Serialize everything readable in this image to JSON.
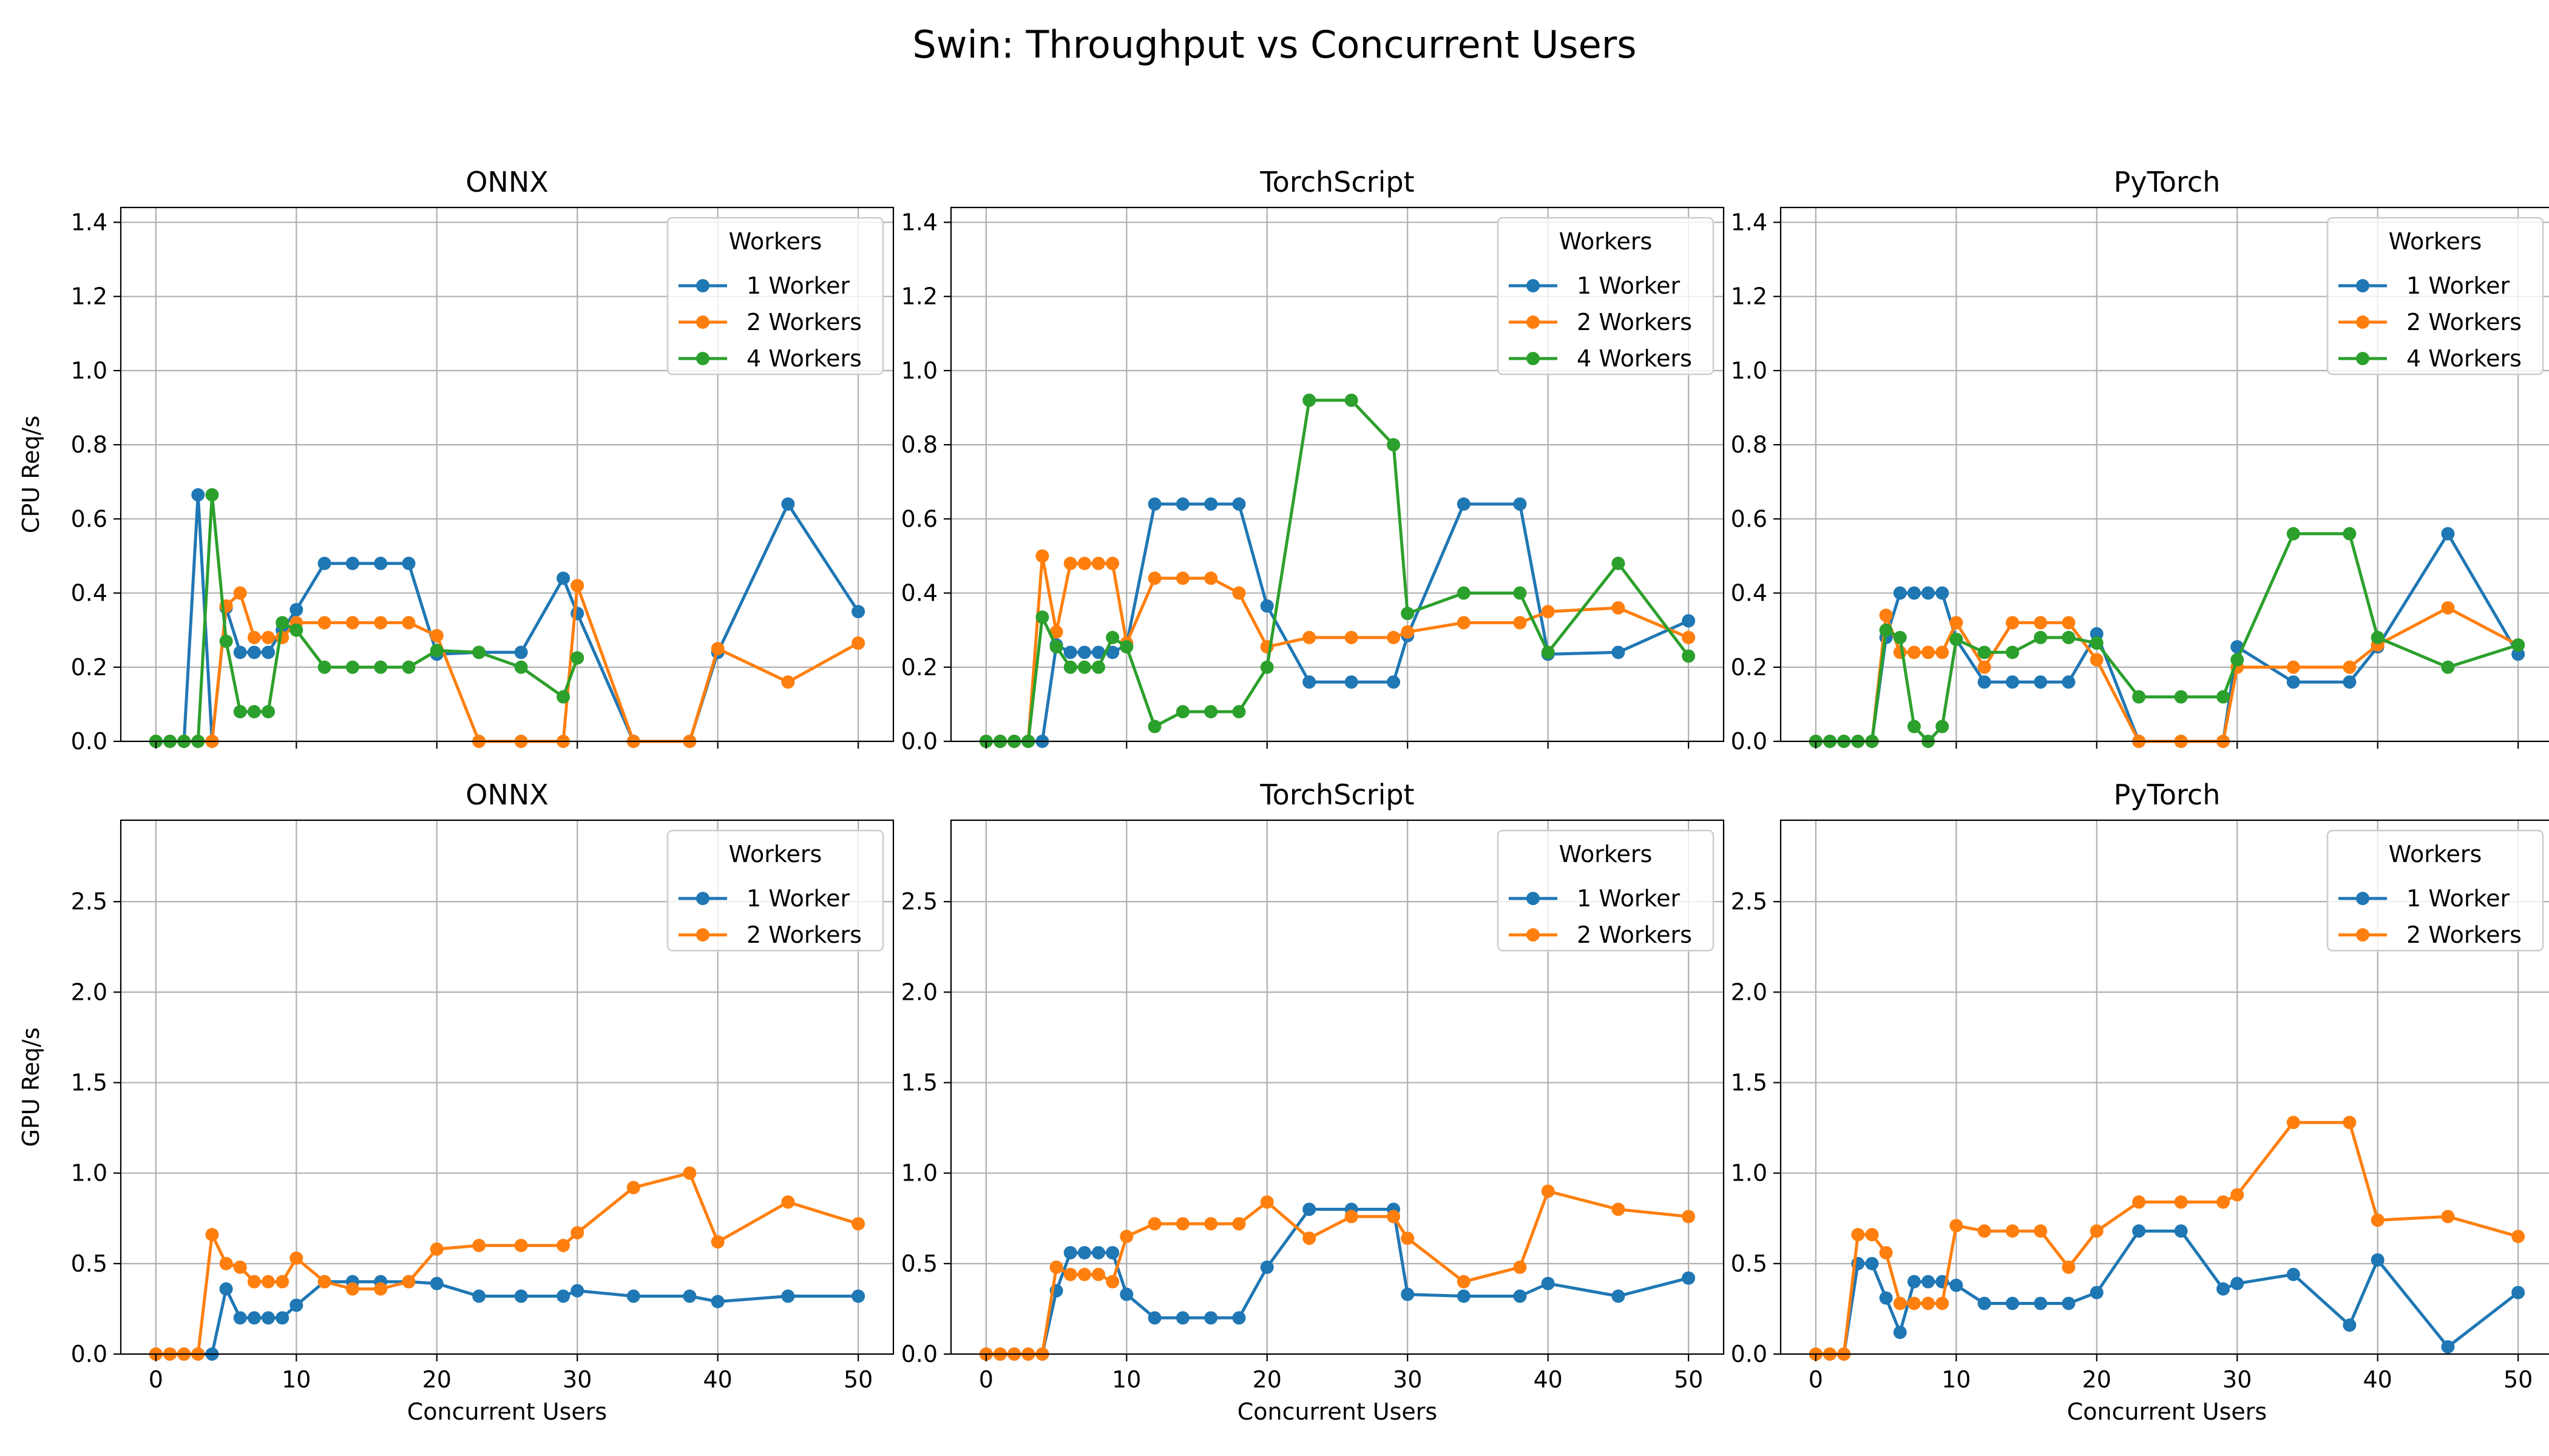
{
  "suptitle": "Swin: Throughput vs Concurrent Users",
  "colors": {
    "1 Worker": "#1f77b4",
    "2 Workers": "#ff7f0e",
    "4 Workers": "#2ca02c"
  },
  "chart_data": [
    {
      "type": "line",
      "title": "ONNX",
      "xlabel": "",
      "ylabel": "CPU Req/s",
      "xlim": [
        -2.5,
        52.5
      ],
      "ylim": [
        0,
        1.44
      ],
      "xticks": [
        0,
        10,
        20,
        30,
        40,
        50
      ],
      "xtick_labels": [
        "",
        "",
        "",
        "",
        "",
        ""
      ],
      "yticks": [
        0,
        0.2,
        0.4,
        0.6,
        0.8,
        1.0,
        1.2,
        1.4
      ],
      "ytick_labels": [
        "0.0",
        "0.2",
        "0.4",
        "0.6",
        "0.8",
        "1.0",
        "1.2",
        "1.4"
      ],
      "legend_title": "Workers",
      "legend_loc": "upper right",
      "grid": true,
      "series": [
        {
          "name": "1 Worker",
          "x": [
            0,
            1,
            2,
            3,
            4,
            5,
            6,
            7,
            8,
            9,
            10,
            12,
            14,
            16,
            18,
            20,
            23,
            26,
            29,
            30,
            34,
            38,
            40,
            45,
            50
          ],
          "y": [
            0,
            0,
            0,
            0.665,
            0,
            0.36,
            0.24,
            0.24,
            0.24,
            0.3,
            0.355,
            0.48,
            0.48,
            0.48,
            0.48,
            0.235,
            0.24,
            0.24,
            0.44,
            0.345,
            0,
            0,
            0.24,
            0.64,
            0.35
          ]
        },
        {
          "name": "2 Workers",
          "x": [
            0,
            1,
            2,
            3,
            4,
            5,
            6,
            7,
            8,
            9,
            10,
            12,
            14,
            16,
            18,
            20,
            23,
            26,
            29,
            30,
            34,
            38,
            40,
            45,
            50
          ],
          "y": [
            0,
            0,
            0,
            0,
            0,
            0.365,
            0.4,
            0.28,
            0.28,
            0.28,
            0.32,
            0.32,
            0.32,
            0.32,
            0.32,
            0.285,
            0,
            0,
            0,
            0.42,
            0,
            0,
            0.25,
            0.16,
            0.265
          ]
        },
        {
          "name": "4 Workers",
          "x": [
            0,
            1,
            2,
            3,
            4,
            5,
            6,
            7,
            8,
            9,
            10,
            12,
            14,
            16,
            18,
            20,
            23,
            26,
            29,
            30
          ],
          "y": [
            0,
            0,
            0,
            0,
            0.665,
            0.27,
            0.08,
            0.08,
            0.08,
            0.32,
            0.3,
            0.2,
            0.2,
            0.2,
            0.2,
            0.245,
            0.24,
            0.2,
            0.12,
            0.225
          ]
        }
      ]
    },
    {
      "type": "line",
      "title": "TorchScript",
      "xlabel": "",
      "ylabel": "",
      "xlim": [
        -2.5,
        52.5
      ],
      "ylim": [
        0,
        1.44
      ],
      "xticks": [
        0,
        10,
        20,
        30,
        40,
        50
      ],
      "xtick_labels": [
        "",
        "",
        "",
        "",
        "",
        ""
      ],
      "yticks": [
        0,
        0.2,
        0.4,
        0.6,
        0.8,
        1.0,
        1.2,
        1.4
      ],
      "ytick_labels": [
        "0.0",
        "0.2",
        "0.4",
        "0.6",
        "0.8",
        "1.0",
        "1.2",
        "1.4"
      ],
      "legend_title": "Workers",
      "legend_loc": "upper right",
      "grid": true,
      "series": [
        {
          "name": "1 Worker",
          "x": [
            0,
            1,
            2,
            3,
            4,
            5,
            6,
            7,
            8,
            9,
            10,
            12,
            14,
            16,
            18,
            20,
            23,
            26,
            29,
            30,
            34,
            38,
            40,
            45,
            50
          ],
          "y": [
            0,
            0,
            0,
            0,
            0,
            0.26,
            0.24,
            0.24,
            0.24,
            0.24,
            0.26,
            0.64,
            0.64,
            0.64,
            0.64,
            0.365,
            0.16,
            0.16,
            0.16,
            0.285,
            0.64,
            0.64,
            0.235,
            0.24,
            0.325
          ]
        },
        {
          "name": "2 Workers",
          "x": [
            0,
            1,
            2,
            3,
            4,
            5,
            6,
            7,
            8,
            9,
            10,
            12,
            14,
            16,
            18,
            20,
            23,
            26,
            29,
            30,
            34,
            38,
            40,
            45,
            50
          ],
          "y": [
            0,
            0,
            0,
            0,
            0.5,
            0.295,
            0.48,
            0.48,
            0.48,
            0.48,
            0.265,
            0.44,
            0.44,
            0.44,
            0.4,
            0.255,
            0.28,
            0.28,
            0.28,
            0.295,
            0.32,
            0.32,
            0.35,
            0.36,
            0.28
          ]
        },
        {
          "name": "4 Workers",
          "x": [
            0,
            1,
            2,
            3,
            4,
            5,
            6,
            7,
            8,
            9,
            10,
            12,
            14,
            16,
            18,
            20,
            23,
            26,
            29,
            30,
            34,
            38,
            40,
            45,
            50
          ],
          "y": [
            0,
            0,
            0,
            0,
            0.335,
            0.255,
            0.2,
            0.2,
            0.2,
            0.28,
            0.255,
            0.04,
            0.08,
            0.08,
            0.08,
            0.2,
            0.92,
            0.92,
            0.8,
            0.345,
            0.4,
            0.4,
            0.24,
            0.48,
            0.23
          ]
        }
      ]
    },
    {
      "type": "line",
      "title": "PyTorch",
      "xlabel": "",
      "ylabel": "",
      "xlim": [
        -2.5,
        52.5
      ],
      "ylim": [
        0,
        1.44
      ],
      "xticks": [
        0,
        10,
        20,
        30,
        40,
        50
      ],
      "xtick_labels": [
        "",
        "",
        "",
        "",
        "",
        ""
      ],
      "yticks": [
        0,
        0.2,
        0.4,
        0.6,
        0.8,
        1.0,
        1.2,
        1.4
      ],
      "ytick_labels": [
        "0.0",
        "0.2",
        "0.4",
        "0.6",
        "0.8",
        "1.0",
        "1.2",
        "1.4"
      ],
      "legend_title": "Workers",
      "legend_loc": "upper right",
      "grid": true,
      "series": [
        {
          "name": "1 Worker",
          "x": [
            0,
            1,
            2,
            3,
            4,
            5,
            6,
            7,
            8,
            9,
            10,
            12,
            14,
            16,
            18,
            20,
            23,
            26,
            29,
            30,
            34,
            38,
            40,
            45,
            50
          ],
          "y": [
            0,
            0,
            0,
            0,
            0,
            0.28,
            0.4,
            0.4,
            0.4,
            0.4,
            0.275,
            0.16,
            0.16,
            0.16,
            0.16,
            0.29,
            0,
            0,
            0,
            0.255,
            0.16,
            0.16,
            0.255,
            0.56,
            0.235
          ]
        },
        {
          "name": "2 Workers",
          "x": [
            0,
            1,
            2,
            3,
            4,
            5,
            6,
            7,
            8,
            9,
            10,
            12,
            14,
            16,
            18,
            20,
            23,
            26,
            29,
            30,
            34,
            38,
            40,
            45,
            50
          ],
          "y": [
            0,
            0,
            0,
            0,
            0,
            0.34,
            0.24,
            0.24,
            0.24,
            0.24,
            0.32,
            0.2,
            0.32,
            0.32,
            0.32,
            0.22,
            0,
            0,
            0,
            0.2,
            0.2,
            0.2,
            0.26,
            0.36,
            0.26
          ]
        },
        {
          "name": "4 Workers",
          "x": [
            0,
            1,
            2,
            3,
            4,
            5,
            6,
            7,
            8,
            9,
            10,
            12,
            14,
            16,
            18,
            20,
            23,
            26,
            29,
            30,
            34,
            38,
            40,
            45,
            50
          ],
          "y": [
            0,
            0,
            0,
            0,
            0,
            0.3,
            0.28,
            0.04,
            0,
            0.04,
            0.275,
            0.24,
            0.24,
            0.28,
            0.28,
            0.265,
            0.12,
            0.12,
            0.12,
            0.22,
            0.56,
            0.56,
            0.28,
            0.2,
            0.26
          ]
        }
      ]
    },
    {
      "type": "line",
      "title": "ONNX",
      "xlabel": "Concurrent Users",
      "ylabel": "GPU Req/s",
      "xlim": [
        -2.5,
        52.5
      ],
      "ylim": [
        0,
        2.95
      ],
      "xticks": [
        0,
        10,
        20,
        30,
        40,
        50
      ],
      "xtick_labels": [
        "0",
        "10",
        "20",
        "30",
        "40",
        "50"
      ],
      "yticks": [
        0,
        0.5,
        1.0,
        1.5,
        2.0,
        2.5
      ],
      "ytick_labels": [
        "0.0",
        "0.5",
        "1.0",
        "1.5",
        "2.0",
        "2.5"
      ],
      "legend_title": "Workers",
      "legend_loc": "upper right",
      "grid": true,
      "series": [
        {
          "name": "1 Worker",
          "x": [
            0,
            1,
            2,
            3,
            4,
            5,
            6,
            7,
            8,
            9,
            10,
            12,
            14,
            16,
            18,
            20,
            23,
            26,
            29,
            30,
            34,
            38,
            40,
            45,
            50
          ],
          "y": [
            0,
            0,
            0,
            0,
            0,
            0.36,
            0.2,
            0.2,
            0.2,
            0.2,
            0.27,
            0.4,
            0.4,
            0.4,
            0.4,
            0.39,
            0.32,
            0.32,
            0.32,
            0.35,
            0.32,
            0.32,
            0.29,
            0.32,
            0.32
          ]
        },
        {
          "name": "2 Workers",
          "x": [
            0,
            1,
            2,
            3,
            4,
            5,
            6,
            7,
            8,
            9,
            10,
            12,
            14,
            16,
            18,
            20,
            23,
            26,
            29,
            30,
            34,
            38,
            40,
            45,
            50
          ],
          "y": [
            0,
            0,
            0,
            0,
            0.66,
            0.5,
            0.48,
            0.4,
            0.4,
            0.4,
            0.53,
            0.4,
            0.36,
            0.36,
            0.4,
            0.58,
            0.6,
            0.6,
            0.6,
            0.67,
            0.92,
            1.0,
            0.62,
            0.84,
            0.72
          ]
        }
      ]
    },
    {
      "type": "line",
      "title": "TorchScript",
      "xlabel": "Concurrent Users",
      "ylabel": "",
      "xlim": [
        -2.5,
        52.5
      ],
      "ylim": [
        0,
        2.95
      ],
      "xticks": [
        0,
        10,
        20,
        30,
        40,
        50
      ],
      "xtick_labels": [
        "0",
        "10",
        "20",
        "30",
        "40",
        "50"
      ],
      "yticks": [
        0,
        0.5,
        1.0,
        1.5,
        2.0,
        2.5
      ],
      "ytick_labels": [
        "0.0",
        "0.5",
        "1.0",
        "1.5",
        "2.0",
        "2.5"
      ],
      "legend_title": "Workers",
      "legend_loc": "upper right",
      "grid": true,
      "series": [
        {
          "name": "1 Worker",
          "x": [
            0,
            1,
            2,
            3,
            4,
            5,
            6,
            7,
            8,
            9,
            10,
            12,
            14,
            16,
            18,
            20,
            23,
            26,
            29,
            30,
            34,
            38,
            40,
            45,
            50
          ],
          "y": [
            0,
            0,
            0,
            0,
            0,
            0.35,
            0.56,
            0.56,
            0.56,
            0.56,
            0.33,
            0.2,
            0.2,
            0.2,
            0.2,
            0.48,
            0.8,
            0.8,
            0.8,
            0.33,
            0.32,
            0.32,
            0.39,
            0.32,
            0.42
          ]
        },
        {
          "name": "2 Workers",
          "x": [
            0,
            1,
            2,
            3,
            4,
            5,
            6,
            7,
            8,
            9,
            10,
            12,
            14,
            16,
            18,
            20,
            23,
            26,
            29,
            30,
            34,
            38,
            40,
            45,
            50
          ],
          "y": [
            0,
            0,
            0,
            0,
            0,
            0.48,
            0.44,
            0.44,
            0.44,
            0.4,
            0.65,
            0.72,
            0.72,
            0.72,
            0.72,
            0.84,
            0.64,
            0.76,
            0.76,
            0.64,
            0.4,
            0.48,
            0.9,
            0.8,
            0.76
          ]
        }
      ]
    },
    {
      "type": "line",
      "title": "PyTorch",
      "xlabel": "Concurrent Users",
      "ylabel": "",
      "xlim": [
        -2.5,
        52.5
      ],
      "ylim": [
        0,
        2.95
      ],
      "xticks": [
        0,
        10,
        20,
        30,
        40,
        50
      ],
      "xtick_labels": [
        "0",
        "10",
        "20",
        "30",
        "40",
        "50"
      ],
      "yticks": [
        0,
        0.5,
        1.0,
        1.5,
        2.0,
        2.5
      ],
      "ytick_labels": [
        "0.0",
        "0.5",
        "1.0",
        "1.5",
        "2.0",
        "2.5"
      ],
      "legend_title": "Workers",
      "legend_loc": "upper right",
      "grid": true,
      "series": [
        {
          "name": "1 Worker",
          "x": [
            0,
            1,
            2,
            3,
            4,
            5,
            6,
            7,
            8,
            9,
            10,
            12,
            14,
            16,
            18,
            20,
            23,
            26,
            29,
            30,
            34,
            38,
            40,
            45,
            50
          ],
          "y": [
            0,
            0,
            0,
            0.5,
            0.5,
            0.31,
            0.12,
            0.4,
            0.4,
            0.4,
            0.38,
            0.28,
            0.28,
            0.28,
            0.28,
            0.34,
            0.68,
            0.68,
            0.36,
            0.39,
            0.44,
            0.16,
            0.52,
            0.04,
            0.34
          ]
        },
        {
          "name": "2 Workers",
          "x": [
            0,
            1,
            2,
            3,
            4,
            5,
            6,
            7,
            8,
            9,
            10,
            12,
            14,
            16,
            18,
            20,
            23,
            26,
            29,
            30,
            34,
            38,
            40,
            45,
            50
          ],
          "y": [
            0,
            0,
            0,
            0.66,
            0.66,
            0.56,
            0.28,
            0.28,
            0.28,
            0.28,
            0.71,
            0.68,
            0.68,
            0.68,
            0.48,
            0.68,
            0.84,
            0.84,
            0.84,
            0.88,
            1.28,
            1.28,
            0.74,
            0.76,
            0.65
          ]
        }
      ]
    }
  ]
}
